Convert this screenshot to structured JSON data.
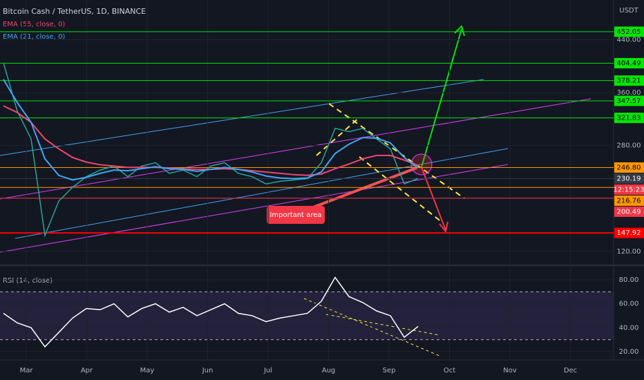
{
  "chart_data": {
    "type": "price-chart",
    "title": "Bitcoin Cash / TetherUS, 1D, BINANCE",
    "currency": "USDT",
    "xticks": [
      "Mar",
      "Apr",
      "May",
      "Jun",
      "Jul",
      "Aug",
      "Sep",
      "Oct",
      "Nov",
      "Dec"
    ],
    "ylim": [
      99,
      500
    ],
    "yticks": [
      {
        "value": 120,
        "label": "120.00"
      },
      {
        "value": 200,
        "label": "200.00"
      },
      {
        "value": 280,
        "label": "280.00"
      },
      {
        "value": 360,
        "label": "360.00"
      },
      {
        "value": 440,
        "label": "440.00"
      }
    ],
    "series": [
      {
        "name": "Close",
        "color": "#26a69a",
        "values": [
          405,
          332,
          290,
          144,
          196,
          217,
          233,
          243,
          249,
          233,
          249,
          254,
          238,
          243,
          233,
          249,
          254,
          238,
          233,
          222,
          226,
          228,
          230,
          254,
          306,
          301,
          306,
          290,
          275,
          222,
          230.19
        ]
      },
      {
        "name": "EMA (55, close, 0)",
        "color": "#ef476f",
        "values": [
          340,
          330,
          315,
          290,
          275,
          262,
          255,
          251,
          249,
          247,
          247,
          247,
          246,
          245,
          244,
          244,
          245,
          244,
          242,
          240,
          238,
          236,
          235,
          237,
          245,
          252,
          260,
          265,
          265,
          258,
          250
        ]
      },
      {
        "name": "EMA (21, close, 0)",
        "color": "#42a5f5",
        "values": [
          380,
          345,
          315,
          260,
          235,
          228,
          232,
          238,
          243,
          242,
          245,
          248,
          245,
          244,
          241,
          244,
          247,
          244,
          240,
          234,
          231,
          230,
          231,
          240,
          268,
          282,
          292,
          291,
          284,
          262,
          246
        ]
      }
    ],
    "levels": [
      {
        "value": 452.05,
        "color": "#00e600"
      },
      {
        "value": 404.49,
        "color": "#00e600"
      },
      {
        "value": 378.21,
        "color": "#00e600"
      },
      {
        "value": 347.57,
        "color": "#00e600"
      },
      {
        "value": 321.83,
        "color": "#00e600"
      },
      {
        "value": 246.8,
        "label": "246.80",
        "color": "#ff9800"
      },
      {
        "value": 230.19,
        "color": "#363a45"
      },
      {
        "value": 216.76,
        "color": "#ff9800"
      },
      {
        "value": 200.49,
        "color": "#f23645"
      },
      {
        "value": 147.92,
        "color": "#ff0000"
      }
    ],
    "countdown": "12:15:23",
    "annotation": "Important area",
    "rsi": {
      "title": "RSI (14, close)",
      "color": "#ffffff",
      "ylim": [
        13,
        90.4
      ],
      "yticks": [
        {
          "value": 20,
          "label": "20.00"
        },
        {
          "value": 40,
          "label": "40.00"
        },
        {
          "value": 60,
          "label": "60.00"
        },
        {
          "value": 80,
          "label": "80.00"
        }
      ],
      "bands": [
        70,
        30
      ],
      "values": [
        52,
        44,
        40,
        24,
        36,
        48,
        56,
        55,
        60,
        49,
        56,
        60,
        53,
        57,
        50,
        55,
        60,
        52,
        50,
        45,
        48,
        50,
        52,
        62,
        82,
        66,
        61,
        54,
        50,
        32,
        41
      ]
    }
  }
}
